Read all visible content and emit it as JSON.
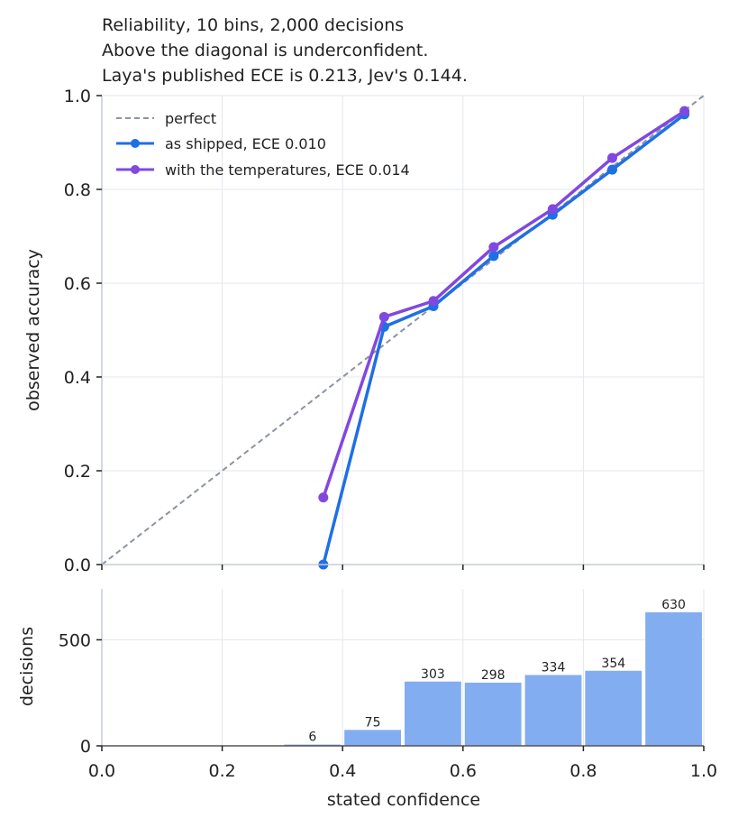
{
  "chart_data": [
    {
      "type": "line",
      "title_lines": [
        "Reliability, 10 bins, 2,000 decisions",
        "Above the diagonal is underconfident.",
        "Laya's published ECE is 0.213, Jev's 0.144."
      ],
      "xlabel": "",
      "ylabel": "observed accuracy",
      "xlim": [
        0.0,
        1.0
      ],
      "ylim": [
        0.0,
        1.0
      ],
      "y_ticks": [
        "0.0",
        "0.2",
        "0.4",
        "0.6",
        "0.8",
        "1.0"
      ],
      "grid": true,
      "legend_position": "upper-left",
      "reference_line": {
        "name": "perfect",
        "x": [
          0.0,
          1.0
        ],
        "y": [
          0.0,
          1.0
        ],
        "color": "#8c93a0",
        "style": "dashed"
      },
      "series": [
        {
          "name": "as shipped, ECE 0.010",
          "color": "#1f6fe5",
          "x": [
            0.368,
            0.469,
            0.551,
            0.651,
            0.749,
            0.848,
            0.968
          ],
          "y": [
            0.0,
            0.507,
            0.551,
            0.658,
            0.746,
            0.842,
            0.96
          ]
        },
        {
          "name": "with the temperatures, ECE 0.014",
          "color": "#8148e0",
          "x": [
            0.368,
            0.469,
            0.551,
            0.651,
            0.749,
            0.848,
            0.968
          ],
          "y": [
            0.143,
            0.528,
            0.562,
            0.677,
            0.758,
            0.867,
            0.967
          ]
        }
      ]
    },
    {
      "type": "bar",
      "xlabel": "stated confidence",
      "ylabel": "decisions",
      "xlim": [
        0.0,
        1.0
      ],
      "ylim": [
        0,
        740
      ],
      "x_ticks": [
        "0.0",
        "0.2",
        "0.4",
        "0.6",
        "0.8",
        "1.0"
      ],
      "y_ticks": [
        0,
        500
      ],
      "bar_color": "#82adf0",
      "bins": [
        {
          "start": 0.3,
          "end": 0.4,
          "value": 6,
          "label": "6"
        },
        {
          "start": 0.4,
          "end": 0.5,
          "value": 75,
          "label": "75"
        },
        {
          "start": 0.5,
          "end": 0.6,
          "value": 303,
          "label": "303"
        },
        {
          "start": 0.6,
          "end": 0.7,
          "value": 298,
          "label": "298"
        },
        {
          "start": 0.7,
          "end": 0.8,
          "value": 334,
          "label": "334"
        },
        {
          "start": 0.8,
          "end": 0.9,
          "value": 354,
          "label": "354"
        },
        {
          "start": 0.9,
          "end": 1.0,
          "value": 630,
          "label": "630"
        }
      ]
    }
  ]
}
